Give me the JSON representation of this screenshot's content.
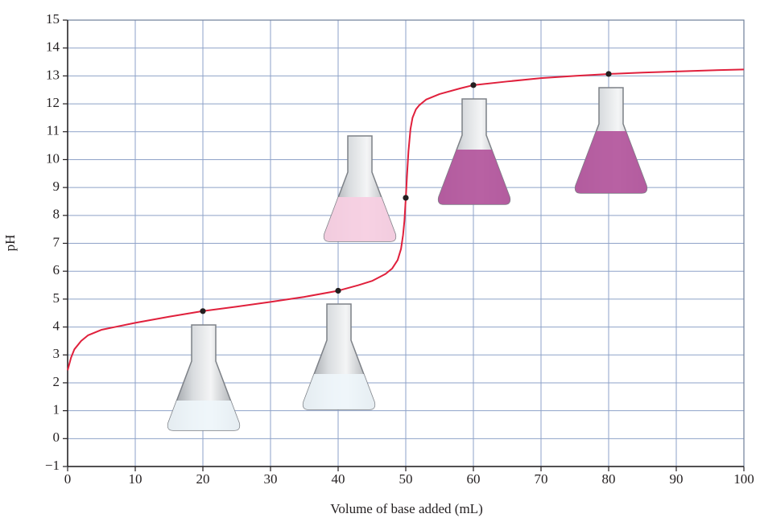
{
  "chart_data": {
    "type": "line",
    "x_label": "Volume of base added (mL)",
    "y_label": "pH",
    "xlim": [
      0,
      100
    ],
    "ylim": [
      -1,
      15
    ],
    "xticks": [
      0,
      10,
      20,
      30,
      40,
      50,
      60,
      70,
      80,
      90,
      100
    ],
    "yticks": [
      {
        "value": -1,
        "label": "−1"
      },
      0,
      1,
      2,
      3,
      4,
      5,
      6,
      7,
      8,
      9,
      10,
      11,
      12,
      13,
      14,
      15
    ],
    "grid": true,
    "grid_color": "#8ea2c8",
    "series": [
      {
        "color": "#e0203c",
        "markers": false,
        "x": [
          0,
          0.5,
          1,
          2,
          3,
          5,
          7,
          10,
          15,
          20,
          25,
          30,
          35,
          40,
          43,
          45,
          47,
          48,
          48.8,
          49.3,
          49.6,
          49.8,
          50,
          50.2,
          50.4,
          50.7,
          51,
          51.5,
          52,
          53,
          55,
          58,
          60,
          65,
          70,
          75,
          80,
          85,
          90,
          95,
          100
        ],
        "values": [
          2.45,
          2.9,
          3.2,
          3.5,
          3.7,
          3.9,
          4.0,
          4.15,
          4.37,
          4.57,
          4.73,
          4.9,
          5.08,
          5.3,
          5.5,
          5.65,
          5.9,
          6.1,
          6.4,
          6.8,
          7.3,
          7.8,
          8.6,
          9.5,
          10.3,
          11.1,
          11.5,
          11.8,
          11.95,
          12.15,
          12.35,
          12.55,
          12.67,
          12.8,
          12.92,
          13.0,
          13.07,
          13.12,
          13.16,
          13.2,
          13.23
        ]
      },
      {
        "color": "#231f20",
        "markers": true,
        "x": [
          20,
          40,
          50,
          60,
          80
        ],
        "values": [
          4.57,
          5.3,
          8.63,
          12.67,
          13.07
        ]
      }
    ]
  }
}
